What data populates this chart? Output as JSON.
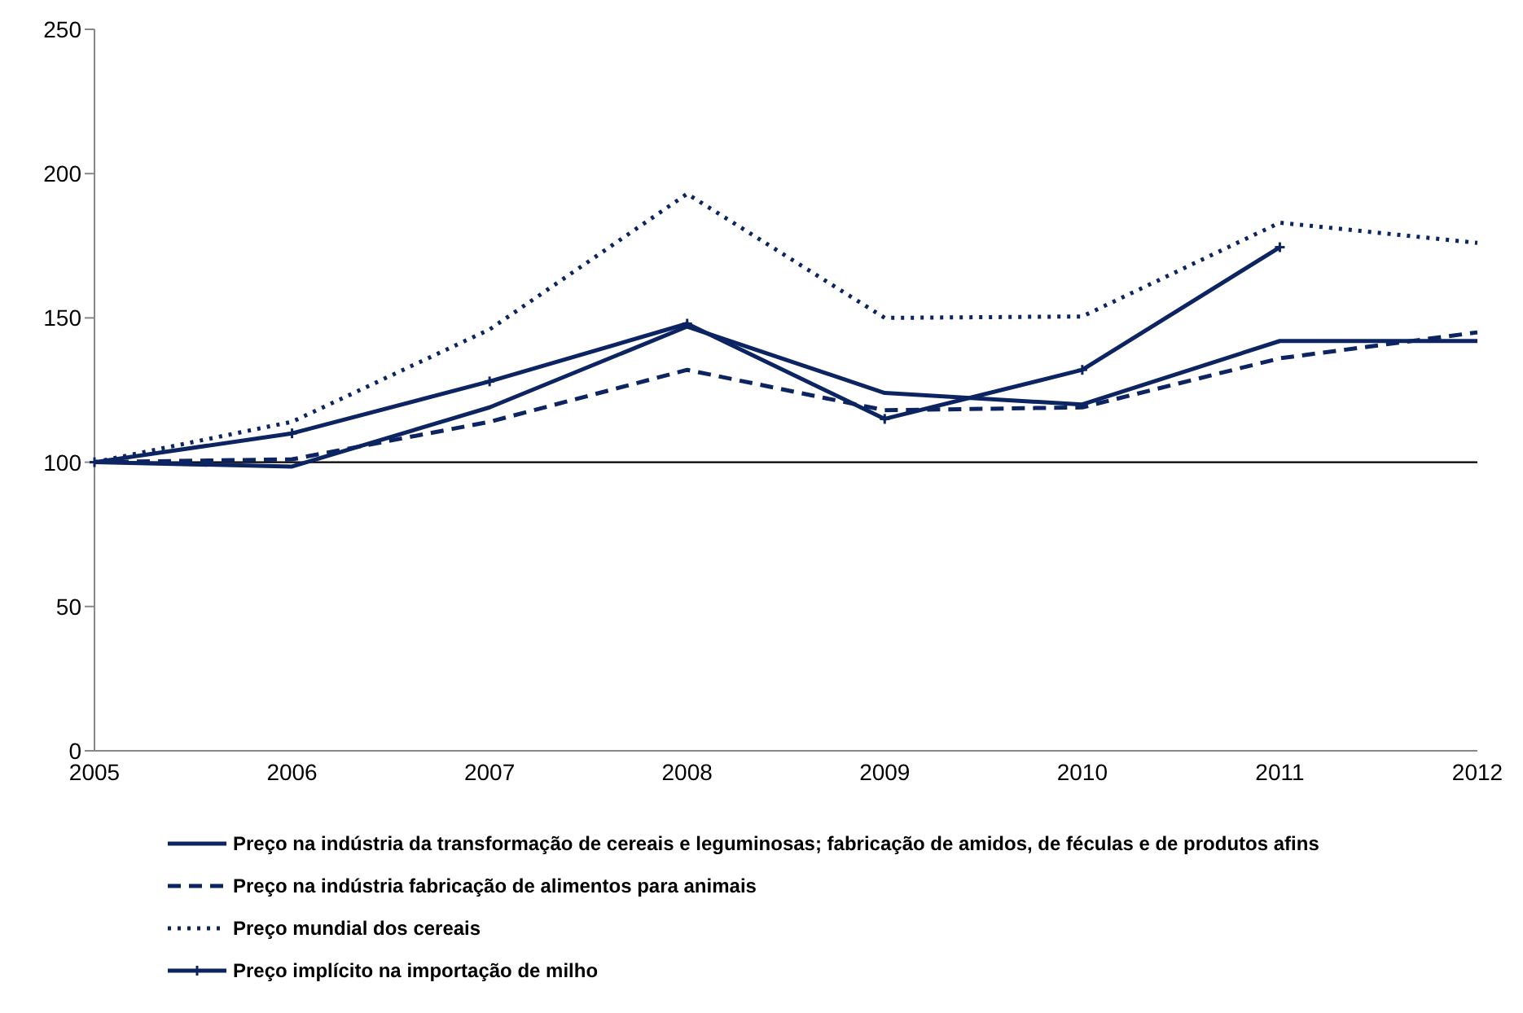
{
  "chart_data": {
    "type": "line",
    "categories": [
      "2005",
      "2006",
      "2007",
      "2008",
      "2009",
      "2010",
      "2011",
      "2012"
    ],
    "series": [
      {
        "name": "Preço na indústria da transformação de cereais e leguminosas; fabricação de amidos, de féculas e de produtos afins",
        "color": "#0c2461",
        "line_style": "solid",
        "marker": "none",
        "values": [
          100,
          98.5,
          119,
          147,
          124,
          120,
          142,
          142
        ]
      },
      {
        "name": "Preço na indústria fabricação de alimentos para animais",
        "color": "#0c2461",
        "line_style": "dashed",
        "marker": "none",
        "values": [
          100,
          101,
          114,
          132,
          118,
          119,
          136,
          145
        ]
      },
      {
        "name": "Preço mundial dos cereais",
        "color": "#0c2461",
        "line_style": "dotted",
        "marker": "none",
        "values": [
          100,
          114,
          146,
          193,
          150,
          150.5,
          183,
          176
        ]
      },
      {
        "name": "Preço implícito na importação de milho",
        "color": "#0c2461",
        "line_style": "solid",
        "marker": "cross",
        "values": [
          100,
          110,
          128,
          148,
          115,
          132,
          174.5,
          null
        ]
      }
    ],
    "ylim": [
      0,
      250
    ],
    "yticks": [
      0,
      50,
      100,
      150,
      200,
      250
    ],
    "grid": false,
    "legend": "bottom",
    "ref_lines": [
      {
        "axis": "y",
        "value": 100,
        "color": "#000000"
      }
    ]
  }
}
